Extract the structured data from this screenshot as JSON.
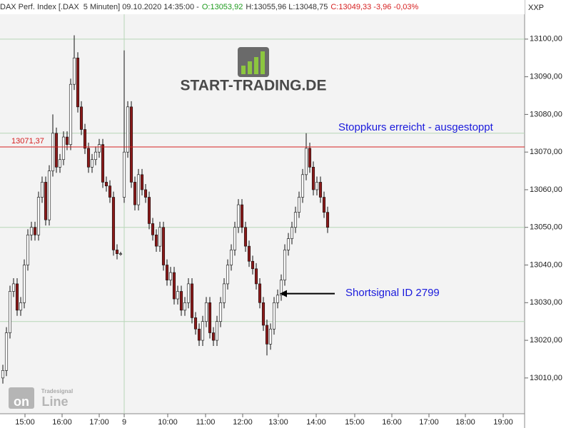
{
  "header": {
    "instrument": "DAX Perf. Index [.DAX  5 Minuten] 09.10.2020 14:35:00 -",
    "open": "O:13053,92",
    "high_low": "H:13055,96 L:13048,75",
    "close": "C:13049,33 -3,96 -0,03%",
    "exchange": "XXP"
  },
  "logo": {
    "brand": "START-TRADING.DE",
    "vendor": "Tradesignal",
    "product_on": "on",
    "product_line": "Line"
  },
  "chart_data": {
    "type": "candlestick",
    "up_color": "#ffffff",
    "down_color": "#8b1a1a",
    "wick_color": "#111111",
    "xlim": [
      -0.8,
      146.2
    ],
    "ylim": [
      13000.5,
      13106.6
    ],
    "xticks": [
      {
        "value": 6.2,
        "label": "15:00"
      },
      {
        "value": 16.6,
        "label": "16:00"
      },
      {
        "value": 27,
        "label": "17:00"
      },
      {
        "value": 34,
        "label": "9"
      },
      {
        "value": 46.2,
        "label": "10:00"
      },
      {
        "value": 56.8,
        "label": "11:00"
      },
      {
        "value": 67.2,
        "label": "12:00"
      },
      {
        "value": 77.2,
        "label": "13:00"
      },
      {
        "value": 87.8,
        "label": "14:00"
      },
      {
        "value": 98.6,
        "label": "15:00"
      },
      {
        "value": 109,
        "label": "16:00"
      },
      {
        "value": 119.4,
        "label": "17:00"
      },
      {
        "value": 129.6,
        "label": "18:00"
      },
      {
        "value": 140.2,
        "label": "19:00"
      }
    ],
    "yticks": [
      {
        "value": 13010,
        "label": "13010,00"
      },
      {
        "value": 13020,
        "label": "13020,00"
      },
      {
        "value": 13030,
        "label": "13030,00"
      },
      {
        "value": 13040,
        "label": "13040,00"
      },
      {
        "value": 13050,
        "label": "13050,00"
      },
      {
        "value": 13060,
        "label": "13060,00"
      },
      {
        "value": 13070,
        "label": "13070,00"
      },
      {
        "value": 13080,
        "label": "13080,00"
      },
      {
        "value": 13090,
        "label": "13090,00"
      },
      {
        "value": 13100,
        "label": "13100,00"
      }
    ],
    "ygrid": [
      13025,
      13050,
      13075,
      13100
    ],
    "day_break": 34,
    "stop_level": {
      "value": 13071.37,
      "label": "13071,37",
      "color": "#d62020"
    },
    "annotations": [
      {
        "text": "Stoppkurs erreicht - ausgestoppt",
        "x": 94,
        "y": 13076.5
      },
      {
        "text": "Shortsignal ID 2799",
        "x": 96,
        "y": 13032.5,
        "arrow_to": 77.6
      }
    ],
    "open": [
      13010,
      13012,
      13022,
      13033,
      13035,
      13028,
      13030,
      13040,
      13048,
      13050,
      13048,
      13058,
      13062,
      13052,
      13065,
      13075,
      13066,
      13068,
      13074,
      13072,
      13088,
      13095,
      13082,
      13076,
      13071,
      13066,
      13068,
      13070,
      13072,
      13062,
      13061,
      13058,
      13044,
      13043,
      13058,
      13070,
      13082,
      13062,
      13056,
      13064,
      13060,
      13058,
      13051,
      13048,
      13045,
      13050,
      13040,
      13036,
      13038,
      13031,
      13033,
      13028,
      13030,
      13035,
      13026,
      13023,
      13020,
      13025,
      13030,
      13022,
      13020,
      13025,
      13030,
      13035,
      13040,
      13044,
      13050,
      13056,
      13050,
      13045,
      13041,
      13039,
      13035,
      13030,
      13024,
      13019,
      13023,
      13030,
      13032,
      13036,
      13044,
      13047,
      13050,
      13054,
      13058,
      13064,
      13071,
      13066,
      13060,
      13062,
      13058,
      13054
    ],
    "high": [
      13013.5,
      13023.5,
      13034.5,
      13036.5,
      13036.5,
      13031.5,
      13041.5,
      13049.5,
      13051.5,
      13051.5,
      13059.5,
      13063.5,
      13063.5,
      13066.5,
      13080,
      13076.5,
      13069.5,
      13075.5,
      13075.5,
      13089.5,
      13101,
      13096.5,
      13083.5,
      13077.5,
      13072.5,
      13069.5,
      13071.5,
      13073.5,
      13073.5,
      13063.5,
      13062.5,
      13059.5,
      13045.5,
      13043.5,
      13097,
      13083.5,
      13083.5,
      13063.5,
      13065.5,
      13065.5,
      13061.5,
      13059.5,
      13052.5,
      13049.5,
      13051.5,
      13051.5,
      13041.5,
      13039.5,
      13039.5,
      13034.5,
      13034.5,
      13031.5,
      13036.5,
      13036.5,
      13027.5,
      13024.5,
      13026.5,
      13031.5,
      13031.5,
      13023.5,
      13026.5,
      13031.5,
      13036.5,
      13041.5,
      13045.5,
      13051.5,
      13057.5,
      13057.5,
      13051.5,
      13046.5,
      13042.5,
      13040.5,
      13036.5,
      13031.5,
      13025.5,
      13024.5,
      13031.5,
      13033.5,
      13037.5,
      13045.5,
      13048.5,
      13051.5,
      13055.5,
      13059.5,
      13065.5,
      13075,
      13072.5,
      13067.5,
      13063.5,
      13063.5,
      13059.5,
      13055.5
    ],
    "low": [
      13008.5,
      13010.5,
      13020.5,
      13031.5,
      13026.5,
      13026.5,
      13028.5,
      13038.5,
      13046.5,
      13046.5,
      13046.5,
      13056.5,
      13050.5,
      13050.5,
      13063.5,
      13064.5,
      13064.5,
      13066.5,
      13070.5,
      13070.5,
      13086.5,
      13080.5,
      13074.5,
      13069.5,
      13064.5,
      13064.5,
      13066.5,
      13068.5,
      13060.5,
      13059.5,
      13056.5,
      13042.5,
      13041.5,
      13042.5,
      13056.5,
      13068.5,
      13060.5,
      13054.5,
      13054.5,
      13058.5,
      13056.5,
      13049.5,
      13046.5,
      13043.5,
      13043.5,
      13038.5,
      13034.5,
      13034.5,
      13029.5,
      13029.5,
      13026.5,
      13026.5,
      13028.5,
      13024.5,
      13021.5,
      13018.5,
      13018.5,
      13023.5,
      13020.5,
      13018.5,
      13018.5,
      13023.5,
      13028.5,
      13033.5,
      13038.5,
      13042.5,
      13048.5,
      13048.5,
      13043.5,
      13039.5,
      13037.5,
      13033.5,
      13028.5,
      13022.5,
      13016,
      13017.5,
      13021.5,
      13028.5,
      13030.5,
      13034.5,
      13042.5,
      13045.5,
      13048.5,
      13052.5,
      13056.5,
      13062.5,
      13064.5,
      13058.5,
      13058.5,
      13056.5,
      13052.5,
      13048.5
    ],
    "close": [
      13012,
      13022,
      13033,
      13035,
      13028,
      13030,
      13040,
      13048,
      13050,
      13048,
      13058,
      13062,
      13052,
      13065,
      13075,
      13066,
      13068,
      13074,
      13072,
      13088,
      13095,
      13082,
      13076,
      13071,
      13066,
      13068,
      13070,
      13072,
      13062,
      13061,
      13058,
      13044,
      13043,
      13043,
      13070,
      13082,
      13062,
      13056,
      13064,
      13060,
      13058,
      13051,
      13048,
      13045,
      13050,
      13040,
      13036,
      13038,
      13031,
      13033,
      13028,
      13030,
      13035,
      13026,
      13023,
      13020,
      13025,
      13030,
      13022,
      13020,
      13025,
      13030,
      13035,
      13040,
      13044,
      13050,
      13056,
      13050,
      13045,
      13041,
      13039,
      13035,
      13030,
      13024,
      13019,
      13023,
      13030,
      13032,
      13036,
      13044,
      13047,
      13050,
      13054,
      13058,
      13064,
      13071,
      13066,
      13060,
      13062,
      13058,
      13054,
      13050
    ]
  }
}
